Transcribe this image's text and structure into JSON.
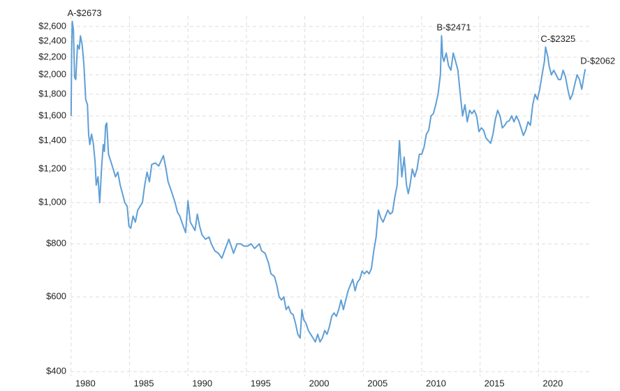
{
  "chart_data": {
    "type": "line",
    "color": "#5f9fd6",
    "log_scale": true,
    "grid": true,
    "xlim": [
      1979.95,
      2024.4
    ],
    "xticks": [
      1980,
      1985,
      1990,
      1995,
      2000,
      2005,
      2010,
      2015,
      2020
    ],
    "ylim": [
      390,
      2750
    ],
    "yticks": [
      {
        "value": 400,
        "label": "$400"
      },
      {
        "value": 600,
        "label": "$600"
      },
      {
        "value": 800,
        "label": "$800"
      },
      {
        "value": 1000,
        "label": "$1,000"
      },
      {
        "value": 1200,
        "label": "$1,200"
      },
      {
        "value": 1400,
        "label": "$1,400"
      },
      {
        "value": 1600,
        "label": "$1,600"
      },
      {
        "value": 1800,
        "label": "$1,800"
      },
      {
        "value": 2000,
        "label": "$2,000"
      },
      {
        "value": 2200,
        "label": "$2,200"
      },
      {
        "value": 2400,
        "label": "$2,400"
      },
      {
        "value": 2600,
        "label": "$2,600"
      }
    ],
    "annotations": [
      {
        "label": "A-$2673",
        "x": 1980.1,
        "y": 2673
      },
      {
        "label": "B-$2471",
        "x": 2011.7,
        "y": 2471
      },
      {
        "label": "C-$2325",
        "x": 2020.6,
        "y": 2325
      },
      {
        "label": "D-$2062",
        "x": 2024.0,
        "y": 2062
      }
    ],
    "x": [
      1980.0,
      1980.05,
      1980.1,
      1980.2,
      1980.3,
      1980.4,
      1980.55,
      1980.7,
      1980.8,
      1980.95,
      1981.1,
      1981.25,
      1981.4,
      1981.5,
      1981.6,
      1981.75,
      1981.9,
      1982.05,
      1982.15,
      1982.3,
      1982.45,
      1982.6,
      1982.75,
      1982.85,
      1982.95,
      1983.05,
      1983.2,
      1983.4,
      1983.6,
      1983.8,
      1984.0,
      1984.2,
      1984.4,
      1984.6,
      1984.8,
      1984.95,
      1985.1,
      1985.3,
      1985.5,
      1985.7,
      1985.9,
      1986.1,
      1986.3,
      1986.5,
      1986.7,
      1986.9,
      1987.2,
      1987.5,
      1987.9,
      1988.1,
      1988.3,
      1988.6,
      1988.9,
      1989.1,
      1989.3,
      1989.6,
      1989.8,
      1990.0,
      1990.2,
      1990.4,
      1990.6,
      1990.8,
      1991.0,
      1991.2,
      1991.5,
      1991.8,
      1992.0,
      1992.3,
      1992.6,
      1992.9,
      1993.2,
      1993.5,
      1993.7,
      1993.9,
      1994.2,
      1994.5,
      1994.8,
      1995.1,
      1995.4,
      1995.7,
      1995.9,
      1996.1,
      1996.3,
      1996.6,
      1996.9,
      1997.1,
      1997.4,
      1997.6,
      1997.8,
      1998.0,
      1998.2,
      1998.4,
      1998.6,
      1998.8,
      1999.0,
      1999.2,
      1999.4,
      1999.6,
      1999.75,
      1999.9,
      2000.1,
      2000.3,
      2000.5,
      2000.7,
      2000.9,
      2001.1,
      2001.3,
      2001.5,
      2001.7,
      2001.9,
      2002.1,
      2002.3,
      2002.5,
      2002.7,
      2002.9,
      2003.1,
      2003.3,
      2003.5,
      2003.7,
      2003.9,
      2004.1,
      2004.3,
      2004.5,
      2004.7,
      2004.9,
      2005.1,
      2005.3,
      2005.5,
      2005.7,
      2005.9,
      2006.1,
      2006.3,
      2006.5,
      2006.7,
      2006.9,
      2007.1,
      2007.3,
      2007.5,
      2007.7,
      2007.9,
      2008.1,
      2008.3,
      2008.5,
      2008.7,
      2008.85,
      2009.0,
      2009.2,
      2009.4,
      2009.6,
      2009.8,
      2010.0,
      2010.2,
      2010.4,
      2010.6,
      2010.8,
      2011.0,
      2011.2,
      2011.4,
      2011.6,
      2011.7,
      2011.8,
      2011.9,
      2012.1,
      2012.3,
      2012.5,
      2012.7,
      2012.9,
      2013.1,
      2013.3,
      2013.5,
      2013.7,
      2013.9,
      2014.1,
      2014.3,
      2014.5,
      2014.7,
      2014.9,
      2015.1,
      2015.3,
      2015.5,
      2015.7,
      2015.9,
      2016.1,
      2016.3,
      2016.5,
      2016.7,
      2016.9,
      2017.1,
      2017.3,
      2017.5,
      2017.7,
      2017.9,
      2018.1,
      2018.3,
      2018.5,
      2018.7,
      2018.9,
      2019.1,
      2019.3,
      2019.5,
      2019.7,
      2019.9,
      2020.1,
      2020.3,
      2020.5,
      2020.6,
      2020.8,
      2020.9,
      2021.1,
      2021.3,
      2021.5,
      2021.7,
      2021.9,
      2022.1,
      2022.3,
      2022.5,
      2022.7,
      2022.9,
      2023.1,
      2023.3,
      2023.5,
      2023.7,
      2023.9,
      2024.0
    ],
    "values": [
      1600,
      2300,
      2673,
      2550,
      1970,
      1950,
      2350,
      2300,
      2470,
      2350,
      2100,
      1750,
      1700,
      1450,
      1370,
      1450,
      1380,
      1250,
      1100,
      1150,
      1000,
      1200,
      1370,
      1320,
      1520,
      1540,
      1300,
      1250,
      1200,
      1150,
      1180,
      1100,
      1050,
      1000,
      980,
      880,
      870,
      930,
      900,
      960,
      980,
      1000,
      1100,
      1180,
      1120,
      1230,
      1240,
      1220,
      1290,
      1210,
      1120,
      1060,
      1000,
      950,
      930,
      880,
      850,
      1010,
      900,
      880,
      860,
      940,
      880,
      840,
      820,
      830,
      800,
      770,
      760,
      740,
      780,
      820,
      790,
      760,
      800,
      800,
      790,
      790,
      800,
      780,
      790,
      800,
      770,
      760,
      720,
      680,
      670,
      640,
      600,
      590,
      600,
      560,
      570,
      550,
      545,
      520,
      490,
      480,
      560,
      530,
      520,
      500,
      490,
      480,
      470,
      490,
      470,
      480,
      500,
      490,
      510,
      540,
      550,
      540,
      560,
      590,
      560,
      590,
      620,
      640,
      660,
      620,
      650,
      660,
      690,
      680,
      690,
      680,
      700,
      770,
      830,
      960,
      920,
      900,
      930,
      960,
      940,
      950,
      1030,
      1100,
      1400,
      1150,
      1280,
      1100,
      1050,
      1100,
      1200,
      1150,
      1200,
      1300,
      1300,
      1350,
      1450,
      1480,
      1600,
      1620,
      1700,
      1800,
      2000,
      2471,
      2200,
      2150,
      2250,
      2100,
      2050,
      2250,
      2150,
      2050,
      1800,
      1600,
      1700,
      1550,
      1650,
      1620,
      1650,
      1600,
      1470,
      1500,
      1480,
      1420,
      1400,
      1380,
      1450,
      1570,
      1650,
      1600,
      1500,
      1520,
      1550,
      1560,
      1600,
      1550,
      1600,
      1560,
      1500,
      1440,
      1480,
      1550,
      1520,
      1700,
      1800,
      1750,
      1850,
      2000,
      2150,
      2325,
      2200,
      2100,
      2000,
      2050,
      2000,
      1950,
      1950,
      2050,
      1980,
      1850,
      1750,
      1800,
      1900,
      2000,
      1950,
      1850,
      2000,
      2062
    ]
  }
}
